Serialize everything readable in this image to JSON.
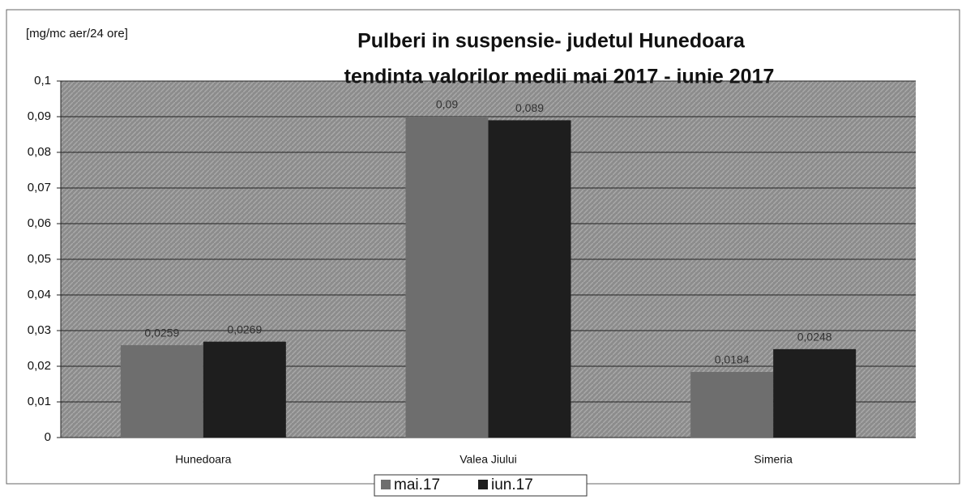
{
  "chart_data": {
    "type": "bar",
    "title": "Pulberi in suspensie- judetul Hunedoara",
    "subtitle": "tendinta valorilor medii mai 2017 - iunie 2017",
    "y_label": "[mg/mc aer/24 ore]",
    "categories": [
      "Hunedoara",
      "Valea Jiului",
      "Simeria"
    ],
    "series": [
      {
        "name": "mai.17",
        "color": "#6e6e6e",
        "values": [
          0.0259,
          0.09,
          0.0184
        ],
        "value_labels": [
          "0,0259",
          "0,09",
          "0,0184"
        ]
      },
      {
        "name": "iun.17",
        "color": "#1e1e1e",
        "values": [
          0.0269,
          0.089,
          0.0248
        ],
        "value_labels": [
          "0,0269",
          "0,089",
          "0,0248"
        ]
      }
    ],
    "ylim": [
      0,
      0.1
    ],
    "yticks": [
      0,
      {
        "value": 0.01,
        "label": "0,01"
      },
      {
        "value": 0.02,
        "label": "0,02"
      },
      {
        "value": 0.03,
        "label": "0,03"
      },
      {
        "value": 0.04,
        "label": "0,04"
      },
      {
        "value": 0.05,
        "label": "0,05"
      },
      {
        "value": 0.06,
        "label": "0,06"
      },
      {
        "value": 0.07,
        "label": "0,07"
      },
      {
        "value": 0.08,
        "label": "0,08"
      },
      {
        "value": 0.09,
        "label": "0,09"
      },
      {
        "value": 0.1,
        "label": "0,1"
      }
    ],
    "grid": true,
    "legend": "bottom"
  }
}
